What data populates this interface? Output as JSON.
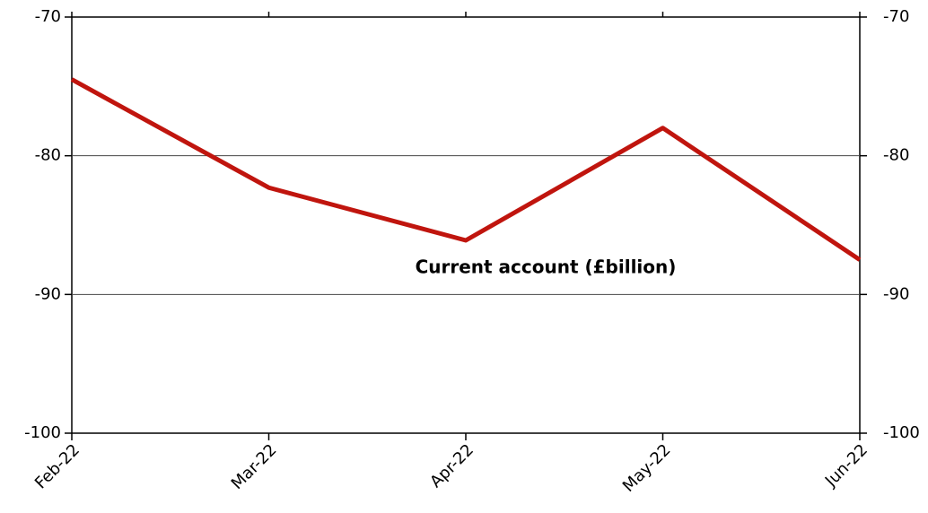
{
  "chart_data": {
    "type": "line",
    "categories": [
      "Feb-22",
      "Mar-22",
      "Apr-22",
      "May-22",
      "Jun-22"
    ],
    "series": [
      {
        "name": "Current account (£billion)",
        "color": "#c0150e",
        "values": [
          -74.5,
          -82.3,
          -86.1,
          -78.0,
          -87.5
        ]
      }
    ],
    "ylim": [
      -100,
      -70
    ],
    "yticks": [
      -100,
      -90,
      -80,
      -70
    ],
    "y2lim": [
      -100,
      -70
    ],
    "y2ticks": [
      -100,
      -90,
      -80,
      -70
    ],
    "grid": true
  }
}
